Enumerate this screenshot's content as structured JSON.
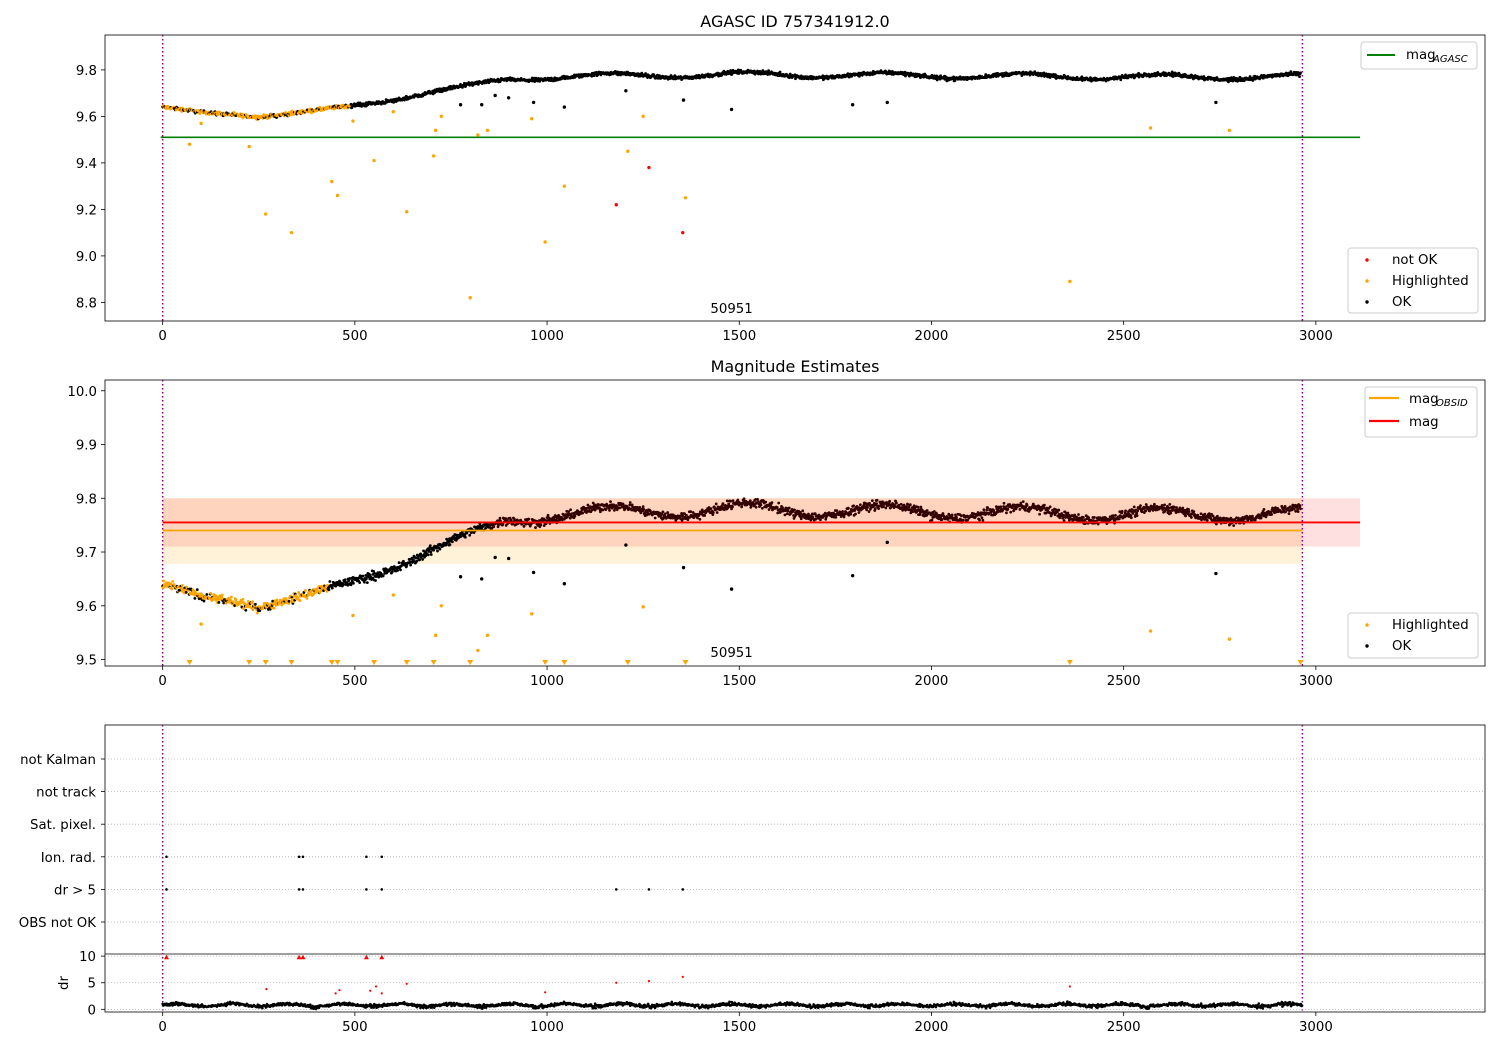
{
  "chart_data": [
    {
      "type": "scatter",
      "title": "AGASC ID 757341912.0",
      "xlim": [
        -150,
        3440
      ],
      "ylim": [
        8.72,
        9.95
      ],
      "x_ticks": [
        0,
        500,
        1000,
        1500,
        2000,
        2500,
        3000
      ],
      "y_ticks": [
        8.8,
        9.0,
        9.2,
        9.4,
        9.6,
        9.8
      ],
      "vlines": [
        0,
        2965
      ],
      "obsid_label": "50951",
      "obsid_label_x": 1480,
      "hline": {
        "name": "mag_AGASC",
        "value": 9.51,
        "x_end": 3115,
        "color": "#008000"
      },
      "legend_top": [
        {
          "label": "mag",
          "sub": "AGASC",
          "color": "#008000"
        }
      ],
      "legend_bottom": [
        {
          "label": "not OK",
          "color": "#ff0000"
        },
        {
          "label": "Highlighted",
          "color": "#ffa500"
        },
        {
          "label": "OK",
          "color": "#000000"
        }
      ],
      "series": [
        {
          "name": "not OK",
          "color": "#ff0000",
          "points": [
            [
              1180,
              9.22
            ],
            [
              1265,
              9.38
            ],
            [
              1353,
              9.1
            ]
          ]
        },
        {
          "name": "Highlighted",
          "color": "#ffa500",
          "points": [
            [
              70,
              9.48
            ],
            [
              100,
              9.57
            ],
            [
              225,
              9.47
            ],
            [
              268,
              9.18
            ],
            [
              335,
              9.1
            ],
            [
              440,
              9.32
            ],
            [
              455,
              9.26
            ],
            [
              495,
              9.58
            ],
            [
              550,
              9.41
            ],
            [
              600,
              9.62
            ],
            [
              635,
              9.19
            ],
            [
              705,
              9.43
            ],
            [
              710,
              9.54
            ],
            [
              725,
              9.6
            ],
            [
              800,
              8.82
            ],
            [
              820,
              9.52
            ],
            [
              845,
              9.54
            ],
            [
              960,
              9.59
            ],
            [
              995,
              9.06
            ],
            [
              1045,
              9.3
            ],
            [
              1210,
              9.45
            ],
            [
              1250,
              9.6
            ],
            [
              1360,
              9.25
            ],
            [
              2360,
              8.89
            ],
            [
              2570,
              9.55
            ],
            [
              2775,
              9.54
            ]
          ]
        },
        {
          "name": "OK",
          "color": "#000000",
          "points": [
            [
              775,
              9.65
            ],
            [
              830,
              9.65
            ],
            [
              865,
              9.69
            ],
            [
              900,
              9.68
            ],
            [
              965,
              9.66
            ],
            [
              1045,
              9.64
            ],
            [
              1205,
              9.71
            ],
            [
              1355,
              9.67
            ],
            [
              1480,
              9.63
            ],
            [
              1795,
              9.65
            ],
            [
              1885,
              9.66
            ],
            [
              2740,
              9.66
            ]
          ]
        }
      ],
      "trend": {
        "name": "OK",
        "color": "#000000",
        "highlight_color": "#ffa500",
        "highlight_until": 490,
        "knots": [
          [
            0,
            9.64
          ],
          [
            100,
            9.615
          ],
          [
            250,
            9.6
          ],
          [
            400,
            9.625
          ],
          [
            500,
            9.645
          ],
          [
            600,
            9.67
          ],
          [
            700,
            9.705
          ],
          [
            800,
            9.735
          ],
          [
            900,
            9.76
          ],
          [
            1000,
            9.77
          ],
          [
            1200,
            9.775
          ],
          [
            1500,
            9.78
          ],
          [
            2000,
            9.775
          ],
          [
            2500,
            9.77
          ],
          [
            2960,
            9.77
          ]
        ]
      }
    },
    {
      "type": "scatter",
      "title": "Magnitude Estimates",
      "xlim": [
        -150,
        3440
      ],
      "ylim": [
        9.488,
        10.02
      ],
      "x_ticks": [
        0,
        500,
        1000,
        1500,
        2000,
        2500,
        3000
      ],
      "y_ticks": [
        9.5,
        9.6,
        9.7,
        9.8,
        9.9,
        10.0
      ],
      "vlines": [
        0,
        2965
      ],
      "obsid_label": "50951",
      "obsid_label_x": 1480,
      "bands": [
        {
          "name": "mag_OBSID",
          "x": [
            0,
            2965
          ],
          "y": [
            9.678,
            9.8
          ],
          "color": "#ffa500",
          "opacity": 0.15
        },
        {
          "name": "mag",
          "x": [
            0,
            3115
          ],
          "y": [
            9.71,
            9.8
          ],
          "color": "#ff0000",
          "opacity": 0.12
        }
      ],
      "hlines": [
        {
          "name": "mag_OBSID",
          "value": 9.74,
          "x_start": 0,
          "x_end": 2965,
          "color": "#ffa500"
        },
        {
          "name": "mag",
          "value": 9.755,
          "x_start": 0,
          "x_end": 3115,
          "color": "#ff0000"
        }
      ],
      "legend_top": [
        {
          "label": "mag",
          "sub": "OBSID",
          "color": "#ffa500"
        },
        {
          "label": "mag",
          "sub": "",
          "color": "#ff0000"
        }
      ],
      "legend_bottom": [
        {
          "label": "Highlighted",
          "color": "#ffa500"
        },
        {
          "label": "OK",
          "color": "#000000"
        }
      ],
      "series": [
        {
          "name": "Highlighted",
          "color": "#ffa500",
          "points": [
            [
              100,
              9.566
            ],
            [
              495,
              9.582
            ],
            [
              600,
              9.62
            ],
            [
              710,
              9.545
            ],
            [
              725,
              9.6
            ],
            [
              820,
              9.517
            ],
            [
              845,
              9.545
            ],
            [
              960,
              9.585
            ],
            [
              1250,
              9.598
            ],
            [
              2570,
              9.553
            ],
            [
              2775,
              9.538
            ]
          ]
        },
        {
          "name": "OK",
          "color": "#000000",
          "points": [
            [
              775,
              9.654
            ],
            [
              830,
              9.65
            ],
            [
              865,
              9.69
            ],
            [
              900,
              9.688
            ],
            [
              965,
              9.662
            ],
            [
              1045,
              9.641
            ],
            [
              1205,
              9.713
            ],
            [
              1355,
              9.671
            ],
            [
              1480,
              9.631
            ],
            [
              1795,
              9.656
            ],
            [
              1885,
              9.718
            ],
            [
              2740,
              9.66
            ]
          ]
        }
      ],
      "clipped_markers": {
        "color": "#ffa500",
        "x": [
          70,
          225,
          268,
          335,
          440,
          455,
          550,
          635,
          705,
          800,
          995,
          1045,
          1210,
          1360,
          2360,
          2960
        ]
      },
      "trend": {
        "name": "OK",
        "color": "#000000",
        "overlay_color": "#330000",
        "highlight_color": "#ffa500",
        "highlight_until": 430,
        "knots": [
          [
            0,
            9.64
          ],
          [
            100,
            9.615
          ],
          [
            250,
            9.6
          ],
          [
            400,
            9.625
          ],
          [
            500,
            9.645
          ],
          [
            600,
            9.67
          ],
          [
            700,
            9.705
          ],
          [
            800,
            9.735
          ],
          [
            900,
            9.76
          ],
          [
            1000,
            9.77
          ],
          [
            1200,
            9.775
          ],
          [
            1500,
            9.78
          ],
          [
            2000,
            9.775
          ],
          [
            2500,
            9.77
          ],
          [
            2960,
            9.77
          ]
        ]
      }
    },
    {
      "type": "scatter",
      "title": "",
      "xlim": [
        -150,
        3440
      ],
      "x_ticks": [
        0,
        500,
        1000,
        1500,
        2000,
        2500,
        3000
      ],
      "vlines": [
        0,
        2965
      ],
      "flag_rows": [
        "not Kalman",
        "not track",
        "Sat. pixel.",
        "Ion. rad.",
        "dr > 5",
        "OBS not OK"
      ],
      "flag_points": {
        "Ion. rad.": [
          10,
          355,
          365,
          530,
          570
        ],
        "dr > 5": [
          10,
          355,
          365,
          530,
          570,
          1180,
          1265,
          1353
        ]
      },
      "dr": {
        "ylabel": "dr",
        "ylim": [
          -0.5,
          10.4
        ],
        "y_ticks": [
          0,
          5,
          10
        ],
        "red_points": [
          [
            10,
            9.8
          ],
          [
            355,
            9.8
          ],
          [
            365,
            9.8
          ],
          [
            530,
            9.8
          ],
          [
            570,
            9.8
          ],
          [
            270,
            3.8
          ],
          [
            450,
            3.0
          ],
          [
            460,
            3.6
          ],
          [
            540,
            3.5
          ],
          [
            555,
            4.3
          ],
          [
            570,
            3.0
          ],
          [
            635,
            4.8
          ],
          [
            995,
            3.2
          ],
          [
            1180,
            5.0
          ],
          [
            1265,
            5.3
          ],
          [
            1353,
            6.1
          ],
          [
            2360,
            4.3
          ]
        ],
        "black_band": [
          0,
          2965
        ]
      }
    }
  ]
}
